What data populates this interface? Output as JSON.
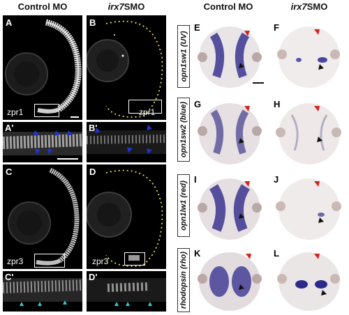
{
  "headers": {
    "left_control": "Control MO",
    "left_irx": "irx7",
    "left_irx_suffix": "SMO",
    "right_control": "Control MO",
    "right_irx": "irx7",
    "right_irx_suffix": "SMO"
  },
  "panels_left": {
    "A": {
      "label": "A",
      "marker": "zpr1"
    },
    "B": {
      "label": "B",
      "marker": "zpr1"
    },
    "A1": {
      "label": "A'"
    },
    "B1": {
      "label": "B'"
    },
    "C": {
      "label": "C",
      "marker": "zpr3"
    },
    "D": {
      "label": "D",
      "marker": "zpr3"
    },
    "C1": {
      "label": "C'"
    },
    "D1": {
      "label": "D'"
    }
  },
  "row_labels": {
    "r1": "opn1sw1 (UV)",
    "r2": "opn1sw2 (blue)",
    "r3": "opn1lw1 (red)",
    "r4": "rhodopsin (rho)"
  },
  "panels_right": {
    "E": "E",
    "F": "F",
    "G": "G",
    "H": "H",
    "I": "I",
    "J": "J",
    "K": "K",
    "L": "L"
  },
  "colors": {
    "blue_arrow": "#2233cc",
    "cyan_arrow": "#33c6d6",
    "red_arrow": "#d92020",
    "stain": "#3b3590",
    "dotted": "#e8e23a"
  }
}
